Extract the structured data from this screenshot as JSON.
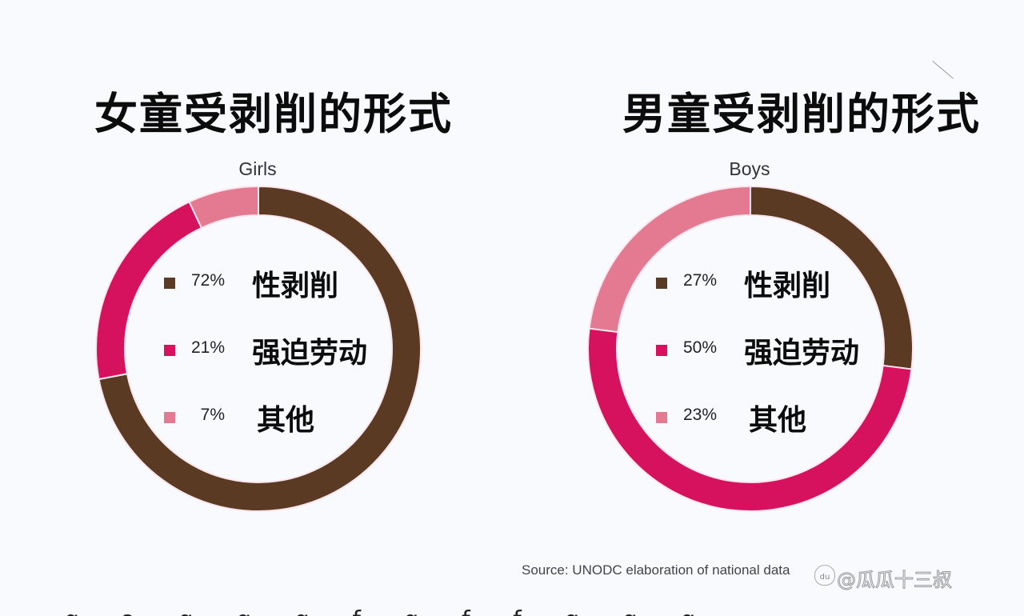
{
  "chart_data": [
    {
      "type": "pie",
      "variant": "donut",
      "title": "女童受剥削的形式",
      "subtitle": "Girls",
      "categories": [
        "性剥削",
        "强迫劳动",
        "其他"
      ],
      "values": [
        72,
        21,
        7
      ],
      "labels": [
        "72%",
        "21%",
        "7%"
      ],
      "colors": [
        "#5a3a22",
        "#d6115e",
        "#e47a92"
      ],
      "start_angle": "12 o'clock, clockwise",
      "legend_position": "inside donut hole"
    },
    {
      "type": "pie",
      "variant": "donut",
      "title": "男童受剥削的形式",
      "subtitle": "Boys",
      "categories": [
        "性剥削",
        "强迫劳动",
        "其他"
      ],
      "values": [
        27,
        50,
        23
      ],
      "labels": [
        "27%",
        "50%",
        "23%"
      ],
      "colors": [
        "#5a3a22",
        "#d6115e",
        "#e47a92"
      ],
      "start_angle": "12 o'clock, clockwise",
      "legend_position": "inside donut hole"
    }
  ],
  "girls": {
    "title": "女童受剥削的形式",
    "subtitle": "Girls",
    "legend": [
      {
        "pct": "72%",
        "label": "性剥削",
        "color": "#5a3a22"
      },
      {
        "pct": "21%",
        "label": "强迫劳动",
        "color": "#d6115e"
      },
      {
        "pct": "7%",
        "label": "其他",
        "color": "#e47a92"
      }
    ]
  },
  "boys": {
    "title": "男童受剥削的形式",
    "subtitle": "Boys",
    "legend": [
      {
        "pct": "27%",
        "label": "性剥削",
        "color": "#5a3a22"
      },
      {
        "pct": "50%",
        "label": "强迫劳动",
        "color": "#d6115e"
      },
      {
        "pct": "23%",
        "label": "其他",
        "color": "#e47a92"
      }
    ]
  },
  "source": "Source: UNODC elaboration of national data",
  "watermark": {
    "icon": "baidu-paw-icon",
    "icon_text": "du",
    "text": "@瓜瓜十三叔"
  },
  "cut_off_text": "ɑ ɔ ɑ ɑ ɑ f ɑ f f ɑ ɑ ɑ"
}
